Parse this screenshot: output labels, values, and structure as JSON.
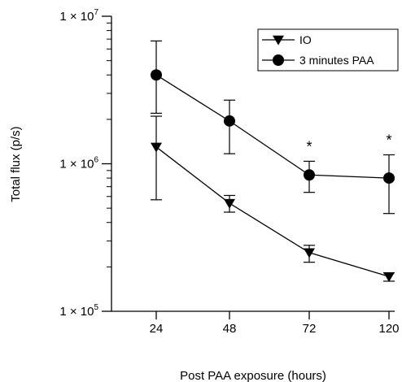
{
  "chart_data": {
    "type": "line",
    "x_scale": "categorical",
    "y_scale": "log",
    "categories": [
      "24",
      "48",
      "72",
      "120"
    ],
    "xlabel": "Post PAA exposure (hours)",
    "ylabel": "Total flux (p/s)",
    "ylim": [
      100000,
      10000000
    ],
    "y_ticks": [
      {
        "value": 100000,
        "mantissa": "1 × 10",
        "exp": "5"
      },
      {
        "value": 1000000,
        "mantissa": "1 × 10",
        "exp": "6"
      },
      {
        "value": 10000000,
        "mantissa": "1 × 10",
        "exp": "7"
      }
    ],
    "legend_position": "top-right",
    "grid": false,
    "series": [
      {
        "name": "IO",
        "marker": "triangle-down",
        "values": [
          1300000,
          540000,
          250000,
          172000
        ],
        "err_low": [
          570000,
          470000,
          215000,
          160000
        ],
        "err_high": [
          2100000,
          610000,
          280000,
          182000
        ]
      },
      {
        "name": "3 minutes PAA",
        "marker": "circle",
        "values": [
          4000000,
          1950000,
          840000,
          800000
        ],
        "err_low": [
          2200000,
          1170000,
          640000,
          460000
        ],
        "err_high": [
          6800000,
          2700000,
          1040000,
          1150000
        ]
      }
    ],
    "annotations": [
      {
        "category": "72",
        "text": "*"
      },
      {
        "category": "120",
        "text": "*"
      }
    ]
  }
}
